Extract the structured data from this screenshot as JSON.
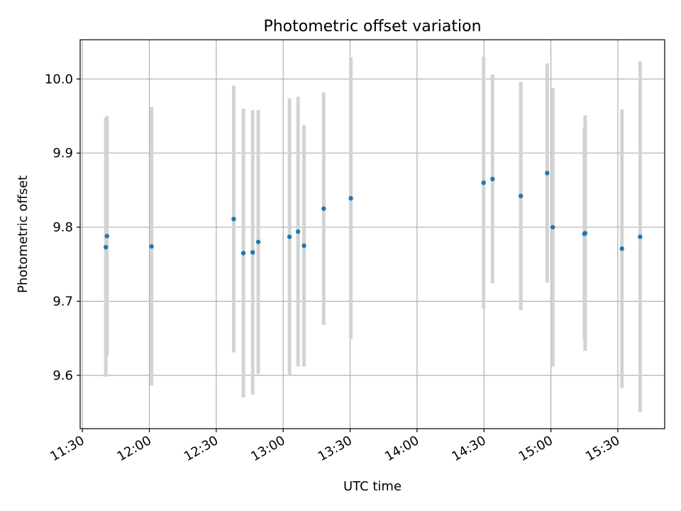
{
  "chart_data": {
    "type": "scatter",
    "title": "Photometric offset variation",
    "xlabel": "UTC time",
    "ylabel": "Photometric offset",
    "x_axis_type": "time",
    "x_tick_labels": [
      "11:30",
      "12:00",
      "12:30",
      "13:00",
      "13:30",
      "14:00",
      "14:30",
      "15:00",
      "15:30"
    ],
    "x_tick_values": [
      "11:30",
      "12:00",
      "12:30",
      "13:00",
      "13:30",
      "14:00",
      "14:30",
      "15:00",
      "15:30"
    ],
    "y_ticks": [
      9.6,
      9.7,
      9.8,
      9.9,
      10.0
    ],
    "xlim": [
      "11:29",
      "15:51"
    ],
    "ylim": [
      9.528,
      10.053
    ],
    "grid": true,
    "colors": {
      "marker": "#1f77b4",
      "errorbar": "#d3d3d3",
      "grid": "#b0b0b0"
    },
    "points": [
      {
        "x": "11:40:30",
        "y": 9.773,
        "yerr": 0.175
      },
      {
        "x": "11:41:00",
        "y": 9.788,
        "yerr": 0.162
      },
      {
        "x": "12:01:00",
        "y": 9.774,
        "yerr": 0.188
      },
      {
        "x": "12:37:50",
        "y": 9.811,
        "yerr": 0.18
      },
      {
        "x": "12:42:10",
        "y": 9.765,
        "yerr": 0.195
      },
      {
        "x": "12:46:20",
        "y": 9.766,
        "yerr": 0.192
      },
      {
        "x": "12:48:50",
        "y": 9.78,
        "yerr": 0.178
      },
      {
        "x": "13:02:50",
        "y": 9.787,
        "yerr": 0.187
      },
      {
        "x": "13:06:40",
        "y": 9.794,
        "yerr": 0.182
      },
      {
        "x": "13:09:20",
        "y": 9.775,
        "yerr": 0.163
      },
      {
        "x": "13:18:10",
        "y": 9.825,
        "yerr": 0.157
      },
      {
        "x": "13:30:20",
        "y": 9.839,
        "yerr": 0.19
      },
      {
        "x": "14:29:50",
        "y": 9.86,
        "yerr": 0.17
      },
      {
        "x": "14:33:50",
        "y": 9.865,
        "yerr": 0.141
      },
      {
        "x": "14:46:30",
        "y": 9.842,
        "yerr": 0.154
      },
      {
        "x": "14:58:20",
        "y": 9.873,
        "yerr": 0.148
      },
      {
        "x": "15:00:50",
        "y": 9.8,
        "yerr": 0.188
      },
      {
        "x": "15:15:00",
        "y": 9.791,
        "yerr": 0.142
      },
      {
        "x": "15:15:20",
        "y": 9.792,
        "yerr": 0.159
      },
      {
        "x": "15:31:50",
        "y": 9.771,
        "yerr": 0.188
      },
      {
        "x": "15:40:00",
        "y": 9.787,
        "yerr": 0.237
      }
    ]
  }
}
